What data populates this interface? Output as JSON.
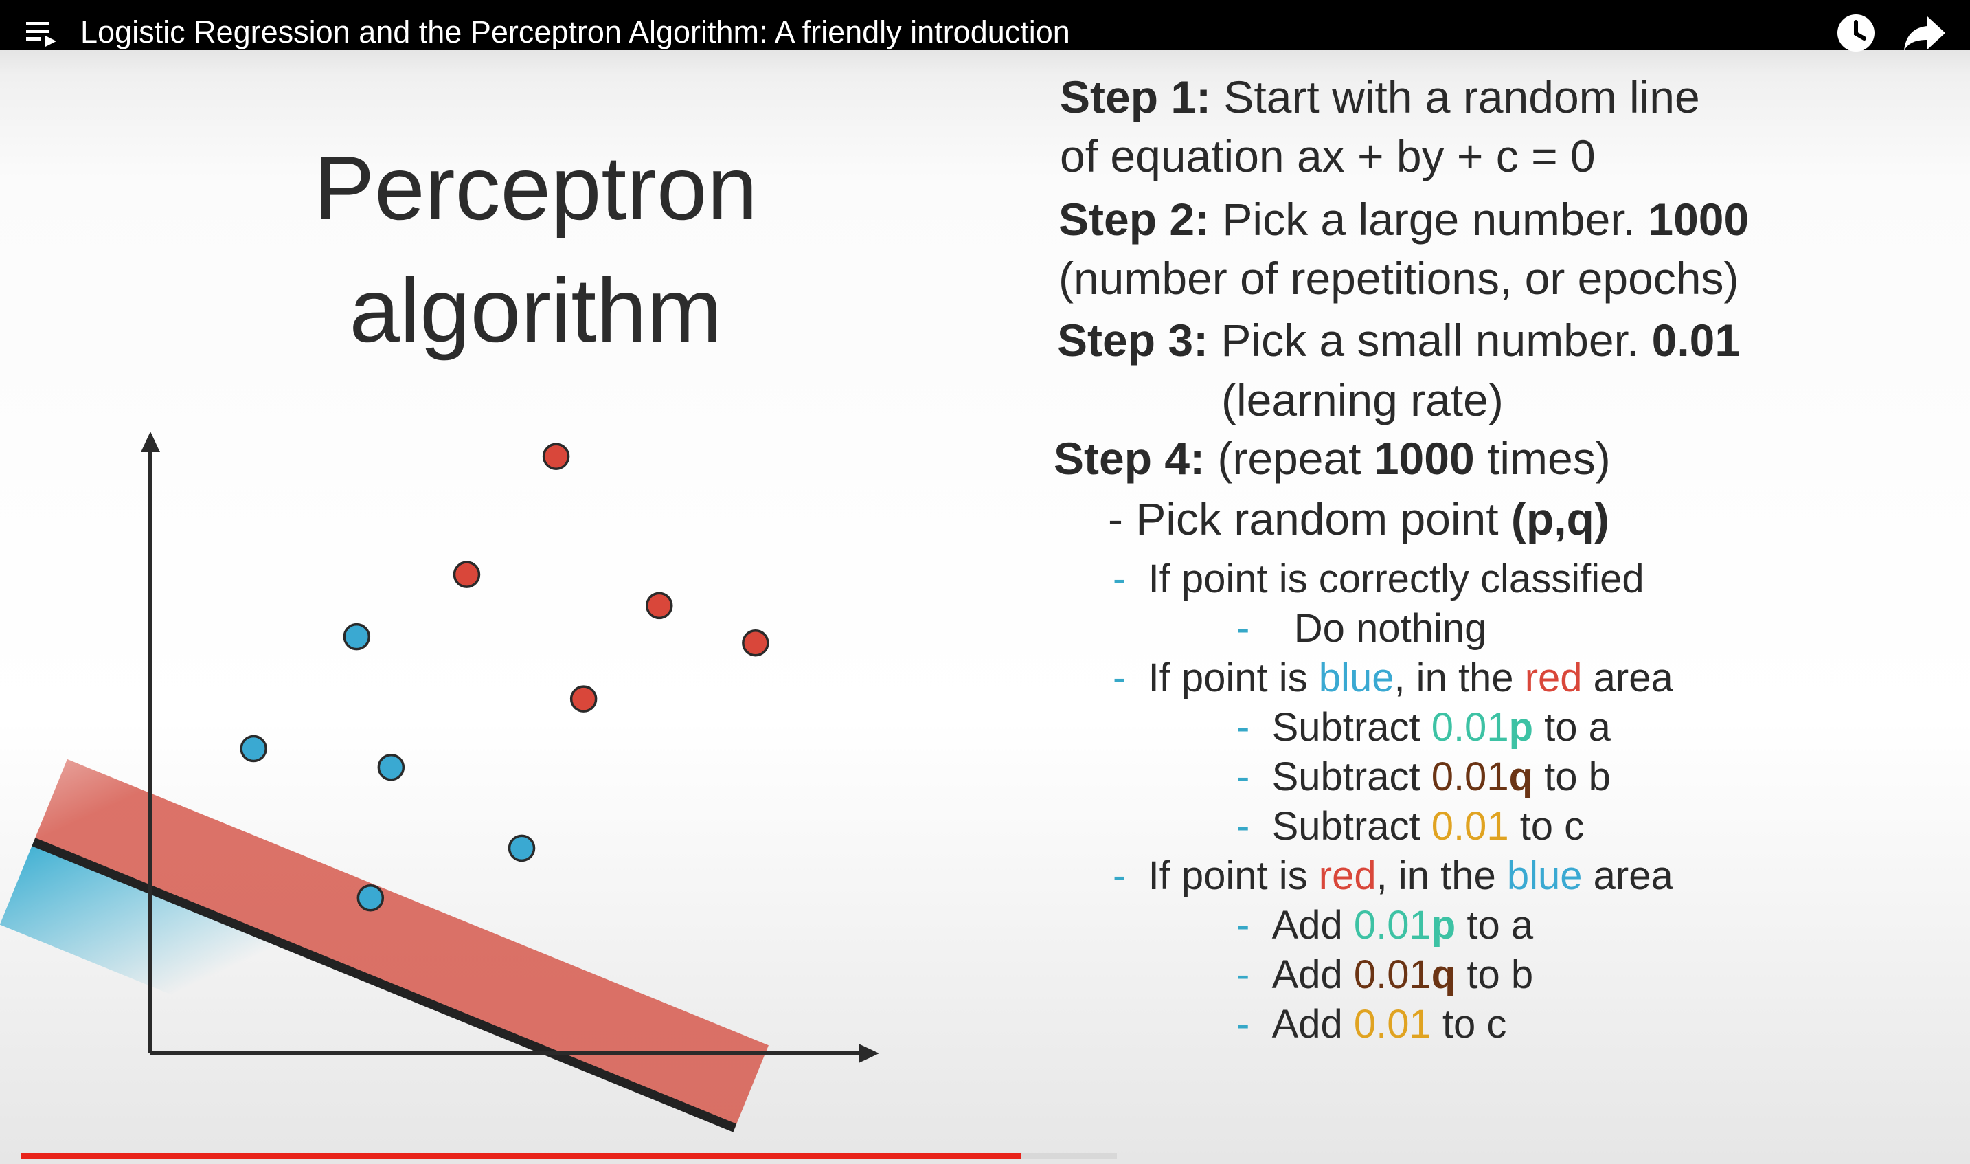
{
  "window": {
    "title": "Logistic Regression and the Perceptron Algorithm: A friendly introduction",
    "icons": [
      "playlist-icon",
      "watch-later-icon",
      "share-icon"
    ]
  },
  "slide": {
    "title_line1": "Perceptron",
    "title_line2": "algorithm",
    "step1": {
      "label": "Step 1:",
      "text": " Start with a random line",
      "text2": "of equation ax + by + c = 0"
    },
    "step2": {
      "label": "Step 2:",
      "text": " Pick a large number. ",
      "number": "1000",
      "text2": "(number of repetitions, or epochs)"
    },
    "step3": {
      "label": "Step 3:",
      "text": " Pick a small number. ",
      "number": "0.01",
      "text2": "(learning rate)"
    },
    "step4": {
      "label": "Step 4:",
      "text_a": " (repeat ",
      "number": "1000",
      "text_b": " times)"
    },
    "pick": {
      "text": "- Pick random point ",
      "bold": "(p,q)"
    },
    "case1": {
      "dash": "-",
      "text": "If point is correctly classified",
      "sub_dash": "-",
      "sub_text": "Do nothing"
    },
    "case2": {
      "dash": "-",
      "t1": "If point is ",
      "c1": "blue",
      "t2": ", in the ",
      "c2": "red",
      "t3": " area",
      "items": [
        {
          "dash": "-",
          "verb": "Subtract ",
          "num": "0.01",
          "var": "p",
          "rest": " to a"
        },
        {
          "dash": "-",
          "verb": "Subtract ",
          "num": "0.01",
          "var": "q",
          "rest": " to b"
        },
        {
          "dash": "-",
          "verb": "Subtract ",
          "num": "0.01",
          "var": "",
          "rest": " to c"
        }
      ]
    },
    "case3": {
      "dash": "-",
      "t1": "If point is ",
      "c1": "red",
      "t2": ", in the ",
      "c2": "blue",
      "t3": " area",
      "items": [
        {
          "dash": "-",
          "verb": "Add ",
          "num": "0.01",
          "var": "p",
          "rest": " to a"
        },
        {
          "dash": "-",
          "verb": "Add ",
          "num": "0.01",
          "var": "q",
          "rest": " to b"
        },
        {
          "dash": "-",
          "verb": "Add ",
          "num": "0.01",
          "var": "",
          "rest": " to c"
        }
      ]
    }
  },
  "chart_data": {
    "type": "scatter",
    "title": "",
    "xlabel": "",
    "ylabel": "",
    "xlim": [
      0,
      10
    ],
    "ylim": [
      0,
      10
    ],
    "grid": false,
    "series": [
      {
        "color": "#3aa9d2",
        "points": [
          [
            1.5,
            4.9
          ],
          [
            3.0,
            6.7
          ],
          [
            3.5,
            4.6
          ],
          [
            5.4,
            3.3
          ],
          [
            3.2,
            2.5
          ]
        ]
      },
      {
        "color": "#d9473a",
        "points": [
          [
            5.9,
            9.6
          ],
          [
            4.6,
            7.7
          ],
          [
            7.4,
            7.2
          ],
          [
            8.8,
            6.6
          ],
          [
            6.3,
            5.7
          ]
        ]
      }
    ],
    "boundary_line": {
      "from": [
        -1.7,
        3.4
      ],
      "to": [
        8.5,
        -1.2
      ]
    }
  },
  "player": {
    "progress_played": 0.52,
    "progress_buffered": 0.57,
    "colors": {
      "played": "#e8231a",
      "buffered": "#d8d8d8",
      "track": "#e6e6e6"
    }
  }
}
